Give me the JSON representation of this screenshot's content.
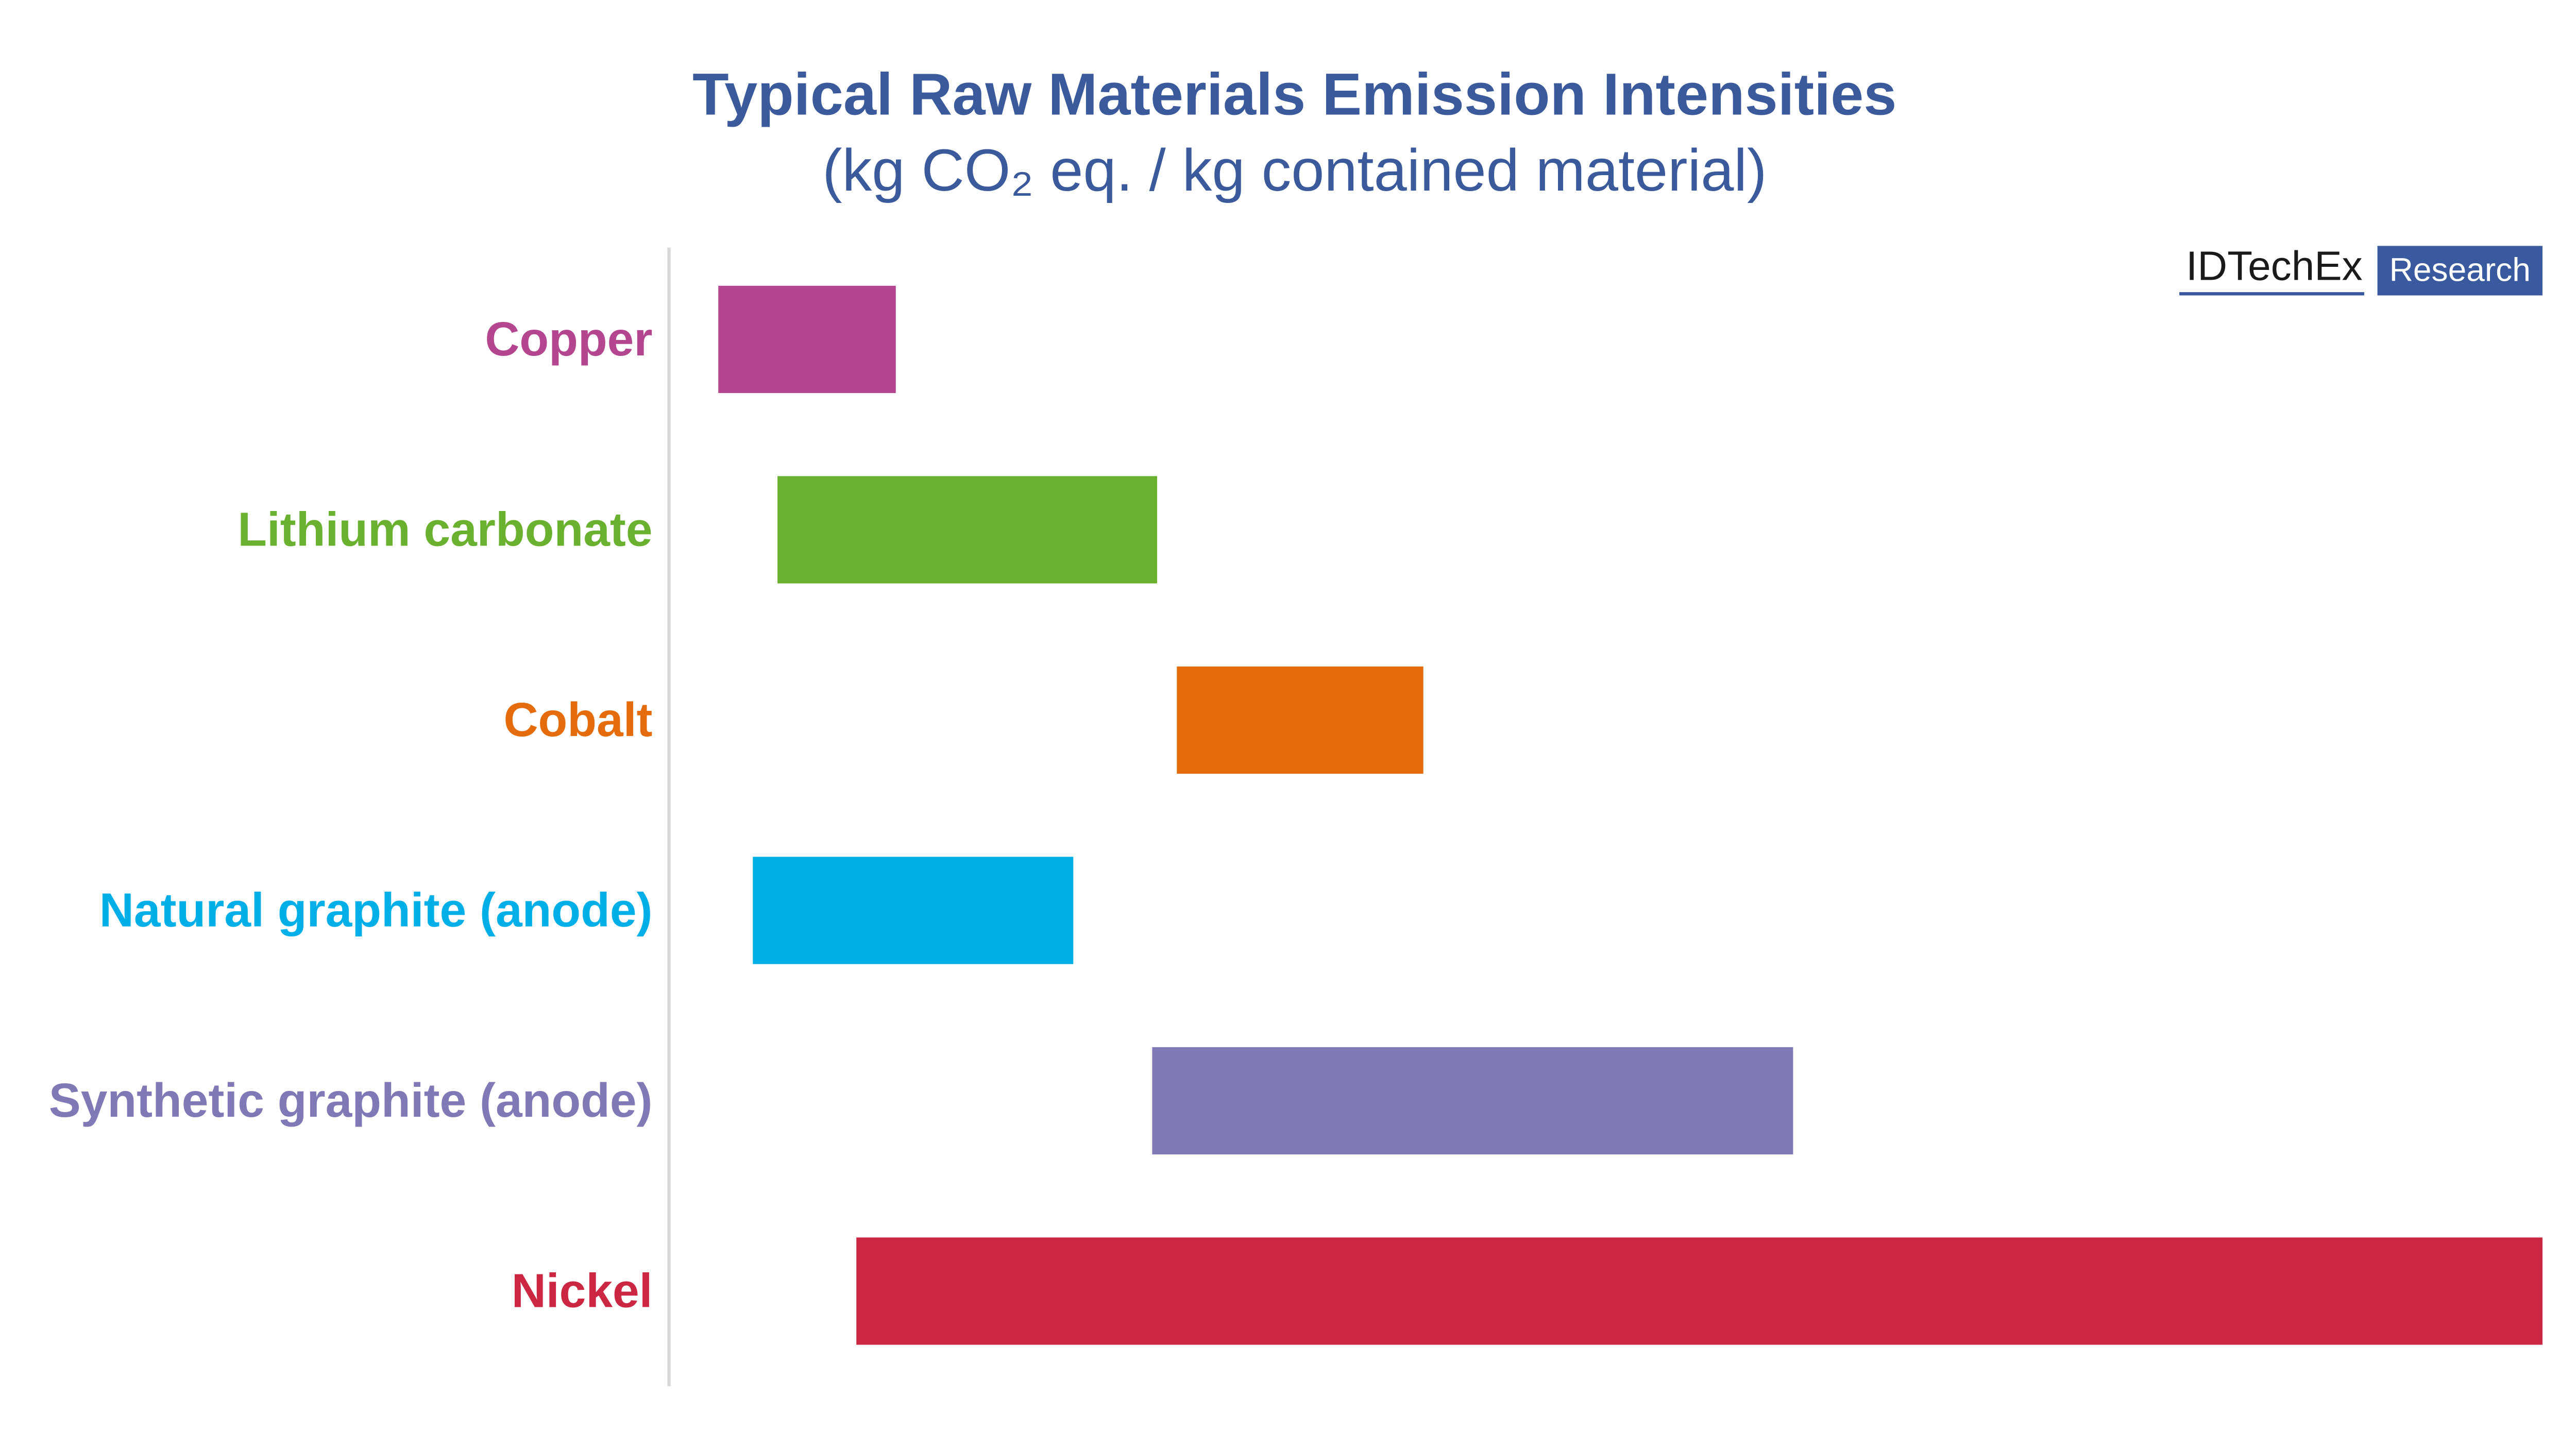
{
  "chart_data": {
    "type": "range-bar",
    "title": "Typical Raw Materials Emission Intensities",
    "subtitle": "(kg CO₂ eq.  / kg contained material)",
    "logo": {
      "brand": "IDTechEx",
      "tag": "Research"
    },
    "categories": [
      "Copper",
      "Lithium carbonate",
      "Cobalt",
      "Natural graphite (anode)",
      "Synthetic graphite (anode)",
      "Nickel"
    ],
    "colors": [
      "#b3468f",
      "#6ab130",
      "#e46c0c",
      "#00aee8",
      "#7f7ab6",
      "#cb2742"
    ],
    "low": [
      1.0,
      2.2,
      10.3,
      1.7,
      9.8,
      3.8
    ],
    "high": [
      4.6,
      9.9,
      15.3,
      8.2,
      22.8,
      38.0
    ],
    "xlim": [
      0,
      38
    ]
  }
}
